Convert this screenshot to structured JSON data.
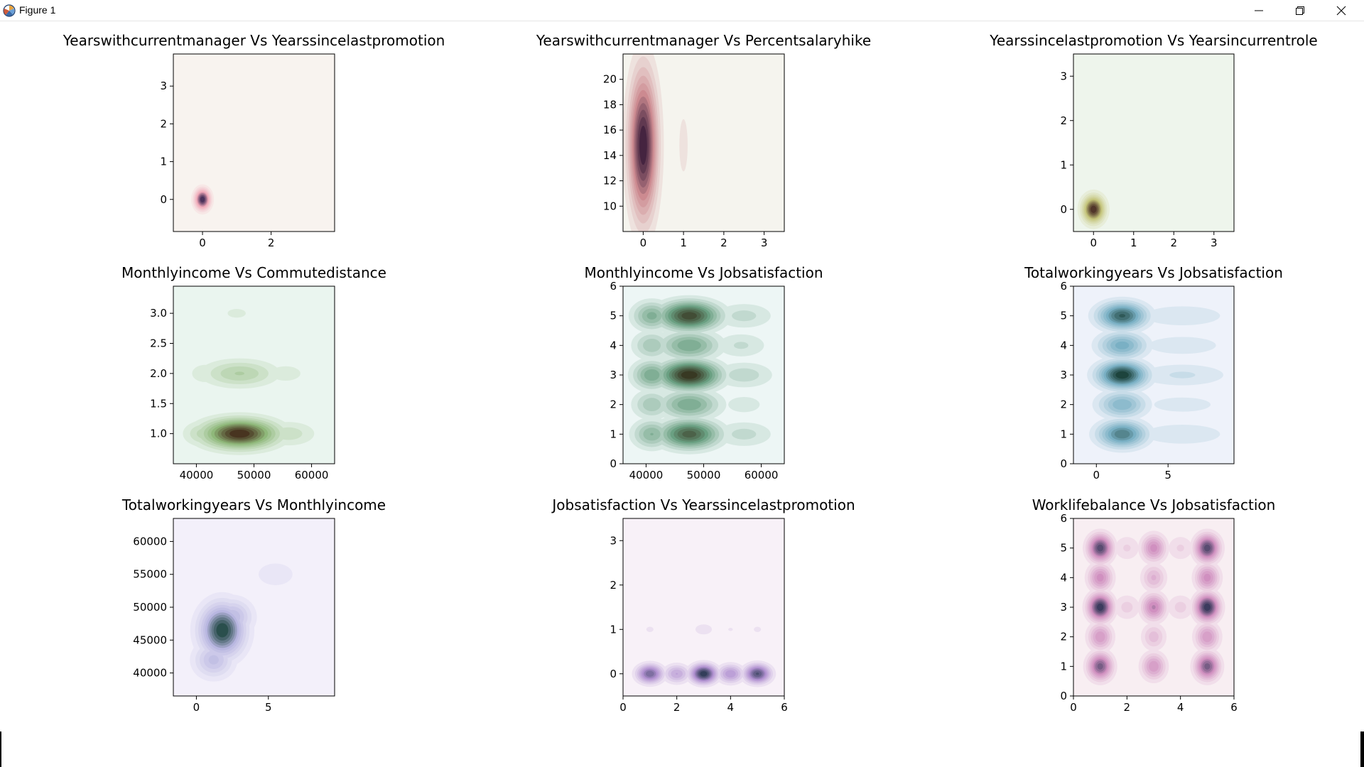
{
  "window": {
    "title": "Figure 1",
    "icons": {
      "app": "matplotlib-icon",
      "minimize": "minimize-icon",
      "maximize": "restore-icon",
      "close": "close-icon"
    }
  },
  "chart_data": [
    {
      "type": "heatmap",
      "kind": "kde",
      "title": "Yearswithcurrentmanager Vs Yearssincelastpromotion",
      "xlabel": "",
      "ylabel": "",
      "xlim": [
        -0.85,
        3.85
      ],
      "ylim": [
        -0.85,
        3.85
      ],
      "xticks": [
        0,
        2
      ],
      "yticks": [
        0,
        1,
        2,
        3
      ],
      "colormap": {
        "low": "#f8f3ef",
        "mid": "#f0a8b8",
        "high": "#2a1a48"
      },
      "density_peaks": [
        {
          "x": 0,
          "y": 0,
          "weight": 1.0,
          "sx": 0.15,
          "sy": 0.18
        },
        {
          "x": 0,
          "y": 1,
          "weight": 0.04,
          "sx": 0.08,
          "sy": 0.05
        }
      ]
    },
    {
      "type": "heatmap",
      "kind": "kde",
      "title": "Yearswithcurrentmanager Vs Percentsalaryhike",
      "xlabel": "",
      "ylabel": "",
      "xlim": [
        -0.5,
        3.5
      ],
      "ylim": [
        8,
        22
      ],
      "xticks": [
        0,
        1,
        2,
        3
      ],
      "yticks": [
        10,
        12,
        14,
        16,
        18,
        20
      ],
      "colormap": {
        "low": "#f5f4ee",
        "mid": "#cc8a90",
        "high": "#2a1030"
      },
      "density_peaks": [
        {
          "x": 0,
          "y": 14.8,
          "weight": 1.0,
          "sx": 0.23,
          "sy": 3.7
        },
        {
          "x": 1,
          "y": 14.8,
          "weight": 0.1,
          "sx": 0.17,
          "sy": 3.4
        }
      ]
    },
    {
      "type": "heatmap",
      "kind": "kde",
      "title": "Yearssincelastpromotion Vs Yearsincurrentrole",
      "xlabel": "",
      "ylabel": "",
      "xlim": [
        -0.5,
        3.5
      ],
      "ylim": [
        -0.5,
        3.5
      ],
      "xticks": [
        0,
        1,
        2,
        3
      ],
      "yticks": [
        0,
        1,
        2,
        3
      ],
      "colormap": {
        "low": "#eef5ec",
        "mid": "#c4c47a",
        "high": "#3a1a1a"
      },
      "density_peaks": [
        {
          "x": 0,
          "y": 0,
          "weight": 1.0,
          "sx": 0.18,
          "sy": 0.2
        },
        {
          "x": 1,
          "y": 0,
          "weight": 0.04,
          "sx": 0.06,
          "sy": 0.06
        }
      ]
    },
    {
      "type": "heatmap",
      "kind": "kde",
      "title": "Monthlyincome Vs Commutedistance",
      "xlabel": "",
      "ylabel": "",
      "xlim": [
        36000,
        64000
      ],
      "ylim": [
        0.5,
        3.45
      ],
      "xticks": [
        40000,
        50000,
        60000
      ],
      "yticks": [
        1.0,
        1.5,
        2.0,
        2.5,
        3.0
      ],
      "colormap": {
        "low": "#eaf5ef",
        "mid": "#8fb87a",
        "high": "#3a1a0e"
      },
      "density_peaks": [
        {
          "x": 47500,
          "y": 1.0,
          "weight": 1.0,
          "sx": 4200,
          "sy": 0.16
        },
        {
          "x": 56000,
          "y": 1.0,
          "weight": 0.22,
          "sx": 3200,
          "sy": 0.14
        },
        {
          "x": 41500,
          "y": 1.0,
          "weight": 0.3,
          "sx": 2400,
          "sy": 0.14
        },
        {
          "x": 47500,
          "y": 2.0,
          "weight": 0.34,
          "sx": 4200,
          "sy": 0.15
        },
        {
          "x": 55500,
          "y": 2.0,
          "weight": 0.12,
          "sx": 3000,
          "sy": 0.14
        },
        {
          "x": 41500,
          "y": 2.0,
          "weight": 0.14,
          "sx": 2200,
          "sy": 0.14
        },
        {
          "x": 47000,
          "y": 3.0,
          "weight": 0.1,
          "sx": 2600,
          "sy": 0.12
        }
      ]
    },
    {
      "type": "heatmap",
      "kind": "kde",
      "title": "Monthlyincome Vs Jobsatisfaction",
      "xlabel": "",
      "ylabel": "",
      "xlim": [
        36000,
        64000
      ],
      "ylim": [
        0,
        6
      ],
      "xticks": [
        40000,
        50000,
        60000
      ],
      "yticks": [
        0,
        1,
        2,
        3,
        4,
        5,
        6
      ],
      "colormap": {
        "low": "#edf6f5",
        "mid": "#6aa082",
        "high": "#2e2410"
      },
      "density_peaks": [
        {
          "x": 47500,
          "y": 5,
          "weight": 0.9,
          "sx": 3400,
          "sy": 0.32
        },
        {
          "x": 47500,
          "y": 4,
          "weight": 0.5,
          "sx": 3400,
          "sy": 0.32
        },
        {
          "x": 47500,
          "y": 3,
          "weight": 1.0,
          "sx": 3400,
          "sy": 0.32
        },
        {
          "x": 47500,
          "y": 2,
          "weight": 0.5,
          "sx": 3400,
          "sy": 0.32
        },
        {
          "x": 47500,
          "y": 1,
          "weight": 0.8,
          "sx": 3400,
          "sy": 0.32
        },
        {
          "x": 41000,
          "y": 5,
          "weight": 0.45,
          "sx": 2200,
          "sy": 0.32
        },
        {
          "x": 41000,
          "y": 4,
          "weight": 0.32,
          "sx": 2200,
          "sy": 0.32
        },
        {
          "x": 41000,
          "y": 3,
          "weight": 0.5,
          "sx": 2200,
          "sy": 0.32
        },
        {
          "x": 41000,
          "y": 2,
          "weight": 0.32,
          "sx": 2200,
          "sy": 0.32
        },
        {
          "x": 41000,
          "y": 1,
          "weight": 0.42,
          "sx": 2200,
          "sy": 0.32
        },
        {
          "x": 57000,
          "y": 5,
          "weight": 0.2,
          "sx": 3500,
          "sy": 0.3
        },
        {
          "x": 56500,
          "y": 4,
          "weight": 0.18,
          "sx": 3200,
          "sy": 0.3
        },
        {
          "x": 57000,
          "y": 3,
          "weight": 0.22,
          "sx": 3500,
          "sy": 0.3
        },
        {
          "x": 57000,
          "y": 2,
          "weight": 0.12,
          "sx": 3200,
          "sy": 0.3
        },
        {
          "x": 57000,
          "y": 1,
          "weight": 0.2,
          "sx": 3500,
          "sy": 0.3
        }
      ]
    },
    {
      "type": "heatmap",
      "kind": "kde",
      "title": "Totalworkingyears Vs Jobsatisfaction",
      "xlabel": "",
      "ylabel": "",
      "xlim": [
        -1.6,
        9.6
      ],
      "ylim": [
        0,
        6
      ],
      "xticks": [
        0,
        5
      ],
      "yticks": [
        0,
        1,
        2,
        3,
        4,
        5,
        6
      ],
      "colormap": {
        "low": "#eef2fa",
        "mid": "#7ab0c4",
        "high": "#0a2e22"
      },
      "density_peaks": [
        {
          "x": 1.8,
          "y": 5,
          "weight": 0.85,
          "sx": 1.1,
          "sy": 0.3
        },
        {
          "x": 1.8,
          "y": 4,
          "weight": 0.55,
          "sx": 1.1,
          "sy": 0.3
        },
        {
          "x": 1.8,
          "y": 3,
          "weight": 1.0,
          "sx": 1.1,
          "sy": 0.3
        },
        {
          "x": 1.8,
          "y": 2,
          "weight": 0.5,
          "sx": 1.1,
          "sy": 0.3
        },
        {
          "x": 1.8,
          "y": 1,
          "weight": 0.75,
          "sx": 1.1,
          "sy": 0.3
        },
        {
          "x": 6,
          "y": 5,
          "weight": 0.16,
          "sx": 2.3,
          "sy": 0.28
        },
        {
          "x": 6,
          "y": 4,
          "weight": 0.14,
          "sx": 2.3,
          "sy": 0.28
        },
        {
          "x": 6,
          "y": 3,
          "weight": 0.18,
          "sx": 2.3,
          "sy": 0.28
        },
        {
          "x": 6,
          "y": 2,
          "weight": 0.12,
          "sx": 2.3,
          "sy": 0.28
        },
        {
          "x": 6,
          "y": 1,
          "weight": 0.16,
          "sx": 2.3,
          "sy": 0.28
        }
      ]
    },
    {
      "type": "heatmap",
      "kind": "kde",
      "title": "Totalworkingyears Vs Monthlyincome",
      "xlabel": "",
      "ylabel": "",
      "xlim": [
        -1.6,
        9.6
      ],
      "ylim": [
        36500,
        63500
      ],
      "xticks": [
        0,
        5
      ],
      "yticks": [
        40000,
        45000,
        50000,
        55000,
        60000
      ],
      "colormap": {
        "low": "#f3f0fa",
        "mid": "#b8b6e0",
        "high": "#0e3a30"
      },
      "density_peaks": [
        {
          "x": 1.8,
          "y": 46500,
          "weight": 1.0,
          "sx": 1.0,
          "sy": 2600
        },
        {
          "x": 1.2,
          "y": 42000,
          "weight": 0.45,
          "sx": 0.9,
          "sy": 1800
        },
        {
          "x": 2.5,
          "y": 48500,
          "weight": 0.5,
          "sx": 0.9,
          "sy": 1800
        },
        {
          "x": 5.5,
          "y": 55000,
          "weight": 0.09,
          "sx": 3.0,
          "sy": 4200
        },
        {
          "x": 5.5,
          "y": 45000,
          "weight": 0.05,
          "sx": 2.5,
          "sy": 3500
        }
      ]
    },
    {
      "type": "heatmap",
      "kind": "kde",
      "title": "Jobsatisfaction Vs Yearssincelastpromotion",
      "xlabel": "",
      "ylabel": "",
      "xlim": [
        0,
        6
      ],
      "ylim": [
        -0.5,
        3.5
      ],
      "xticks": [
        0,
        2,
        4,
        6
      ],
      "yticks": [
        0,
        1,
        2,
        3
      ],
      "colormap": {
        "low": "#f8f1f8",
        "mid": "#b090d0",
        "high": "#1a2e42"
      },
      "density_peaks": [
        {
          "x": 1,
          "y": 0,
          "weight": 0.75,
          "sx": 0.32,
          "sy": 0.14
        },
        {
          "x": 2,
          "y": 0,
          "weight": 0.42,
          "sx": 0.32,
          "sy": 0.14
        },
        {
          "x": 3,
          "y": 0,
          "weight": 1.0,
          "sx": 0.32,
          "sy": 0.14
        },
        {
          "x": 4,
          "y": 0,
          "weight": 0.5,
          "sx": 0.32,
          "sy": 0.14
        },
        {
          "x": 5,
          "y": 0,
          "weight": 0.85,
          "sx": 0.32,
          "sy": 0.14
        },
        {
          "x": 1,
          "y": 1,
          "weight": 0.1,
          "sx": 0.22,
          "sy": 0.1
        },
        {
          "x": 2,
          "y": 1,
          "weight": 0.05,
          "sx": 0.12,
          "sy": 0.06
        },
        {
          "x": 3,
          "y": 1,
          "weight": 0.14,
          "sx": 0.3,
          "sy": 0.11
        },
        {
          "x": 4,
          "y": 1,
          "weight": 0.09,
          "sx": 0.22,
          "sy": 0.09
        },
        {
          "x": 5,
          "y": 1,
          "weight": 0.1,
          "sx": 0.22,
          "sy": 0.1
        }
      ]
    },
    {
      "type": "heatmap",
      "kind": "kde",
      "title": "Worklifebalance Vs Jobsatisfaction",
      "xlabel": "",
      "ylabel": "",
      "xlim": [
        0,
        6
      ],
      "ylim": [
        0,
        6
      ],
      "xticks": [
        0,
        2,
        4,
        6
      ],
      "yticks": [
        0,
        1,
        2,
        3,
        4,
        5,
        6
      ],
      "colormap": {
        "low": "#f8eef2",
        "mid": "#d090c0",
        "high": "#1e2a4a"
      },
      "density_peaks": [
        {
          "x": 1,
          "y": 5,
          "weight": 0.9,
          "sx": 0.3,
          "sy": 0.3
        },
        {
          "x": 3,
          "y": 5,
          "weight": 0.55,
          "sx": 0.3,
          "sy": 0.3
        },
        {
          "x": 5,
          "y": 5,
          "weight": 0.9,
          "sx": 0.3,
          "sy": 0.3
        },
        {
          "x": 1,
          "y": 4,
          "weight": 0.55,
          "sx": 0.3,
          "sy": 0.3
        },
        {
          "x": 3,
          "y": 4,
          "weight": 0.35,
          "sx": 0.3,
          "sy": 0.3
        },
        {
          "x": 5,
          "y": 4,
          "weight": 0.55,
          "sx": 0.3,
          "sy": 0.3
        },
        {
          "x": 1,
          "y": 3,
          "weight": 1.0,
          "sx": 0.3,
          "sy": 0.3
        },
        {
          "x": 3,
          "y": 3,
          "weight": 0.6,
          "sx": 0.3,
          "sy": 0.3
        },
        {
          "x": 5,
          "y": 3,
          "weight": 1.0,
          "sx": 0.3,
          "sy": 0.3
        },
        {
          "x": 1,
          "y": 2,
          "weight": 0.5,
          "sx": 0.3,
          "sy": 0.3
        },
        {
          "x": 3,
          "y": 2,
          "weight": 0.3,
          "sx": 0.3,
          "sy": 0.3
        },
        {
          "x": 5,
          "y": 2,
          "weight": 0.5,
          "sx": 0.3,
          "sy": 0.3
        },
        {
          "x": 1,
          "y": 1,
          "weight": 0.8,
          "sx": 0.3,
          "sy": 0.3
        },
        {
          "x": 3,
          "y": 1,
          "weight": 0.5,
          "sx": 0.3,
          "sy": 0.3
        },
        {
          "x": 5,
          "y": 1,
          "weight": 0.8,
          "sx": 0.3,
          "sy": 0.3
        },
        {
          "x": 2,
          "y": 3,
          "weight": 0.2,
          "sx": 0.35,
          "sy": 0.3
        },
        {
          "x": 4,
          "y": 3,
          "weight": 0.2,
          "sx": 0.35,
          "sy": 0.3
        },
        {
          "x": 2,
          "y": 5,
          "weight": 0.18,
          "sx": 0.35,
          "sy": 0.3
        },
        {
          "x": 4,
          "y": 5,
          "weight": 0.18,
          "sx": 0.35,
          "sy": 0.3
        }
      ]
    }
  ]
}
